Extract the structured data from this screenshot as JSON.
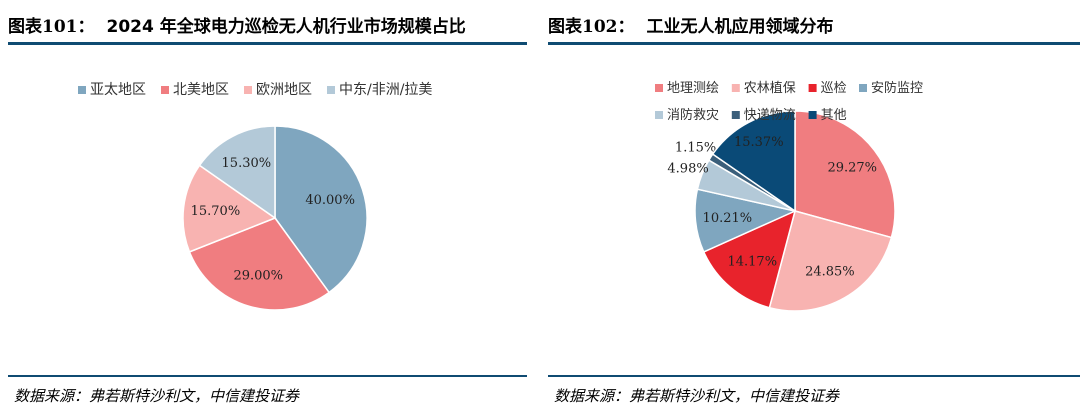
{
  "figures": [
    {
      "number": "图表101：",
      "title": "2024 年全球电力巡检无人机行业市场规模占比",
      "source": "数据来源：弗若斯特沙利文，中信建投证券"
    },
    {
      "number": "图表102：",
      "title": "工业无人机应用领域分布",
      "source": "数据来源：弗若斯特沙利文，中信建投证券"
    }
  ],
  "colors": {
    "rule": "#0f4b72",
    "blue_gray": "#7fa6bf",
    "coral": "#f07d80",
    "light_pink": "#f8b3b1",
    "light_blue": "#b3c9d8",
    "red": "#e8232c",
    "dark_navy": "#0a4a77"
  },
  "chart_data": [
    {
      "type": "pie",
      "title": "2024 年全球电力巡检无人机行业市场规模占比",
      "legend_position": "top",
      "slices": [
        {
          "name": "亚太地区",
          "value": 40.0,
          "label": "40.00%",
          "color": "#7fa6bf"
        },
        {
          "name": "北美地区",
          "value": 29.0,
          "label": "29.00%",
          "color": "#f07d80"
        },
        {
          "name": "欧洲地区",
          "value": 15.7,
          "label": "15.70%",
          "color": "#f8b3b1"
        },
        {
          "name": "中东/非洲/拉美",
          "value": 15.3,
          "label": "15.30%",
          "color": "#b3c9d8"
        }
      ]
    },
    {
      "type": "pie",
      "title": "工业无人机应用领域分布",
      "legend_position": "top",
      "slices": [
        {
          "name": "地理测绘",
          "value": 29.27,
          "label": "29.27%",
          "color": "#f07d80"
        },
        {
          "name": "农林植保",
          "value": 24.85,
          "label": "24.85%",
          "color": "#f8b3b1"
        },
        {
          "name": "巡检",
          "value": 14.17,
          "label": "14.17%",
          "color": "#e8232c"
        },
        {
          "name": "安防监控",
          "value": 10.21,
          "label": "10.21%",
          "color": "#7fa6bf"
        },
        {
          "name": "消防救灾",
          "value": 4.98,
          "label": "4.98%",
          "color": "#b3c9d8"
        },
        {
          "name": "快递物流",
          "value": 1.15,
          "label": "1.15%",
          "color": "#3b5f7b"
        },
        {
          "name": "其他",
          "value": 15.37,
          "label": "15.37%",
          "color": "#0a4a77"
        }
      ]
    }
  ]
}
